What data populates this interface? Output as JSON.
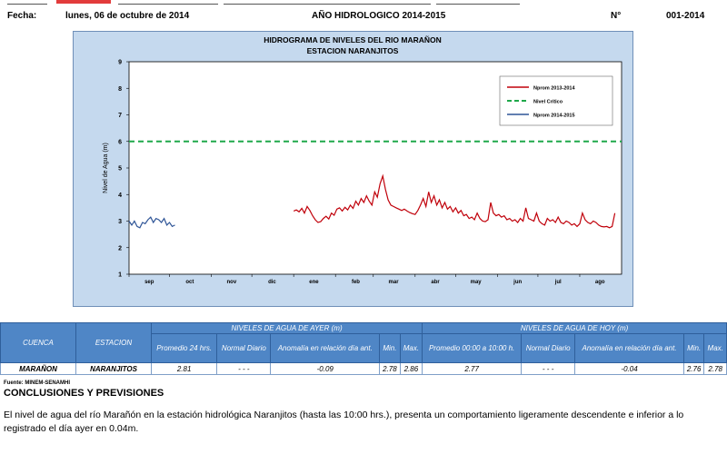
{
  "header": {
    "fecha_label": "Fecha:",
    "fecha_value": "lunes, 06 de octubre de 2014",
    "anio_label": "AÑO HIDROLOGICO 2014-2015",
    "numero_label": "N°",
    "numero_value": "001-2014"
  },
  "chart_data": {
    "type": "line",
    "title": "HIDROGRAMA DE NIVELES  DEL RIO MARAÑON",
    "subtitle": "ESTACION NARANJITOS",
    "ylabel": "Nivel de Agua (m)",
    "xlabel": "",
    "ylim": [
      1,
      9
    ],
    "yticks": [
      "1",
      "2",
      "3",
      "4",
      "5",
      "6",
      "7",
      "8",
      "9"
    ],
    "x_range_days": [
      0,
      365
    ],
    "month_ticks": [
      {
        "label": "sep",
        "day": 0
      },
      {
        "label": "oct",
        "day": 30
      },
      {
        "label": "nov",
        "day": 61
      },
      {
        "label": "dic",
        "day": 91
      },
      {
        "label": "ene",
        "day": 122
      },
      {
        "label": "feb",
        "day": 153
      },
      {
        "label": "mar",
        "day": 181
      },
      {
        "label": "abr",
        "day": 212
      },
      {
        "label": "may",
        "day": 242
      },
      {
        "label": "jun",
        "day": 273
      },
      {
        "label": "jul",
        "day": 303
      },
      {
        "label": "ago",
        "day": 334
      }
    ],
    "grid": false,
    "legend_position": "top-right",
    "colors": {
      "nprom_2013": "#c0000a",
      "critico": "#1fa84a",
      "nprom_2014": "#2f5597"
    },
    "series": [
      {
        "name": "Nprom 2013-2014",
        "style": "solid",
        "points": [
          [
            122,
            3.38
          ],
          [
            124,
            3.42
          ],
          [
            126,
            3.35
          ],
          [
            128,
            3.48
          ],
          [
            130,
            3.3
          ],
          [
            132,
            3.55
          ],
          [
            134,
            3.4
          ],
          [
            136,
            3.2
          ],
          [
            138,
            3.05
          ],
          [
            140,
            2.95
          ],
          [
            142,
            2.98
          ],
          [
            144,
            3.1
          ],
          [
            146,
            3.18
          ],
          [
            148,
            3.08
          ],
          [
            150,
            3.3
          ],
          [
            152,
            3.22
          ],
          [
            154,
            3.45
          ],
          [
            156,
            3.5
          ],
          [
            158,
            3.38
          ],
          [
            160,
            3.52
          ],
          [
            162,
            3.42
          ],
          [
            164,
            3.6
          ],
          [
            166,
            3.48
          ],
          [
            168,
            3.75
          ],
          [
            170,
            3.6
          ],
          [
            172,
            3.85
          ],
          [
            174,
            3.7
          ],
          [
            176,
            3.95
          ],
          [
            178,
            3.75
          ],
          [
            180,
            3.6
          ],
          [
            182,
            4.1
          ],
          [
            184,
            3.9
          ],
          [
            186,
            4.4
          ],
          [
            188,
            4.7
          ],
          [
            190,
            4.2
          ],
          [
            192,
            3.8
          ],
          [
            194,
            3.6
          ],
          [
            196,
            3.55
          ],
          [
            198,
            3.5
          ],
          [
            200,
            3.45
          ],
          [
            202,
            3.4
          ],
          [
            204,
            3.45
          ],
          [
            206,
            3.38
          ],
          [
            208,
            3.32
          ],
          [
            210,
            3.28
          ],
          [
            212,
            3.25
          ],
          [
            214,
            3.4
          ],
          [
            216,
            3.6
          ],
          [
            218,
            3.85
          ],
          [
            220,
            3.55
          ],
          [
            222,
            4.1
          ],
          [
            224,
            3.7
          ],
          [
            226,
            3.95
          ],
          [
            228,
            3.6
          ],
          [
            230,
            3.8
          ],
          [
            232,
            3.5
          ],
          [
            234,
            3.7
          ],
          [
            236,
            3.45
          ],
          [
            238,
            3.55
          ],
          [
            240,
            3.35
          ],
          [
            242,
            3.5
          ],
          [
            244,
            3.3
          ],
          [
            246,
            3.4
          ],
          [
            248,
            3.2
          ],
          [
            250,
            3.25
          ],
          [
            252,
            3.1
          ],
          [
            254,
            3.15
          ],
          [
            256,
            3.05
          ],
          [
            258,
            3.3
          ],
          [
            260,
            3.1
          ],
          [
            262,
            3.0
          ],
          [
            264,
            2.98
          ],
          [
            266,
            3.05
          ],
          [
            268,
            3.7
          ],
          [
            270,
            3.3
          ],
          [
            272,
            3.2
          ],
          [
            274,
            3.25
          ],
          [
            276,
            3.15
          ],
          [
            278,
            3.2
          ],
          [
            280,
            3.05
          ],
          [
            282,
            3.1
          ],
          [
            284,
            3.0
          ],
          [
            286,
            3.05
          ],
          [
            288,
            2.95
          ],
          [
            290,
            3.1
          ],
          [
            292,
            3.0
          ],
          [
            294,
            3.5
          ],
          [
            296,
            3.1
          ],
          [
            298,
            3.05
          ],
          [
            300,
            3.0
          ],
          [
            302,
            3.3
          ],
          [
            304,
            3.0
          ],
          [
            306,
            2.9
          ],
          [
            308,
            2.85
          ],
          [
            310,
            3.1
          ],
          [
            312,
            3.0
          ],
          [
            314,
            3.05
          ],
          [
            316,
            2.95
          ],
          [
            318,
            3.15
          ],
          [
            320,
            2.95
          ],
          [
            322,
            2.9
          ],
          [
            324,
            3.0
          ],
          [
            326,
            2.95
          ],
          [
            328,
            2.85
          ],
          [
            330,
            2.9
          ],
          [
            332,
            2.8
          ],
          [
            334,
            2.9
          ],
          [
            336,
            3.3
          ],
          [
            338,
            3.05
          ],
          [
            340,
            2.95
          ],
          [
            342,
            2.9
          ],
          [
            344,
            3.0
          ],
          [
            346,
            2.95
          ],
          [
            348,
            2.85
          ],
          [
            350,
            2.8
          ],
          [
            352,
            2.78
          ],
          [
            354,
            2.8
          ],
          [
            356,
            2.75
          ],
          [
            358,
            2.8
          ],
          [
            360,
            3.3
          ]
        ]
      },
      {
        "name": "Nivel Crítico",
        "style": "dashed",
        "points": [
          [
            0,
            6.0
          ],
          [
            365,
            6.0
          ]
        ]
      },
      {
        "name": "Nprom 2014-2015",
        "style": "solid",
        "points": [
          [
            0,
            3.0
          ],
          [
            2,
            2.85
          ],
          [
            4,
            3.0
          ],
          [
            6,
            2.8
          ],
          [
            8,
            2.75
          ],
          [
            10,
            2.95
          ],
          [
            12,
            2.9
          ],
          [
            14,
            3.05
          ],
          [
            16,
            3.15
          ],
          [
            18,
            2.95
          ],
          [
            20,
            3.1
          ],
          [
            22,
            3.05
          ],
          [
            24,
            2.95
          ],
          [
            26,
            3.1
          ],
          [
            28,
            2.85
          ],
          [
            30,
            2.95
          ],
          [
            32,
            2.8
          ],
          [
            34,
            2.85
          ]
        ]
      }
    ]
  },
  "table": {
    "group_ayer": "NIVELES DE AGUA DE AYER (m)",
    "group_hoy": "NIVELES DE AGUA DE HOY (m)",
    "col_cuenca": "CUENCA",
    "col_estacion": "ESTACION",
    "ayer_cols": [
      "Promedio  24 hrs.",
      "Normal Diario",
      "Anomalía en relación día ant.",
      "Min.",
      "Max."
    ],
    "hoy_cols": [
      "Promedio 00:00 a 10:00  h.",
      "Normal Diario",
      "Anomalía en relación día ant.",
      "Min.",
      "Max."
    ],
    "row": {
      "cuenca": "MARAÑON",
      "estacion": "NARANJITOS",
      "ayer": [
        "2.81",
        "- - -",
        "-0.09",
        "2.78",
        "2.86"
      ],
      "hoy": [
        "2.77",
        "- - -",
        "-0.04",
        "2.76",
        "2.78"
      ]
    }
  },
  "footer": {
    "fuente": "Fuente: MINEM-SENAMHI",
    "concl_title": "CONCLUSIONES Y PREVISIONES",
    "concl_text": "El nivel de agua del río Marañón en la estación hidrológica Naranjitos (hasta las 10:00 hrs.), presenta un comportamiento ligeramente descendente e inferior a lo registrado el día ayer en 0.04m."
  }
}
